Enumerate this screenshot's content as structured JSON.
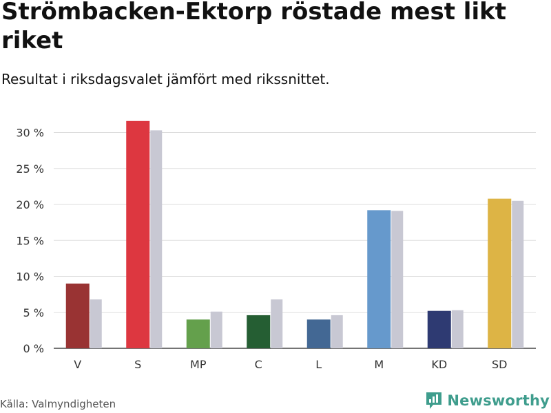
{
  "title": "Strömbacken-Ektorp röstade mest likt riket",
  "subtitle": "Resultat i riksdagsvalet jämfört med rikssnittet.",
  "source": "Källa: Valmyndigheten",
  "brand": {
    "name": "Newsworthy",
    "icon": "newsworthy-logo-icon",
    "color": "#3f9d8d"
  },
  "chart_data": {
    "type": "bar",
    "categories": [
      "V",
      "S",
      "MP",
      "C",
      "L",
      "M",
      "KD",
      "SD"
    ],
    "series": [
      {
        "values": [
          9.0,
          31.6,
          4.0,
          4.6,
          4.0,
          19.2,
          5.2,
          20.8
        ],
        "colors": [
          "#993333",
          "#dd3740",
          "#64a04c",
          "#255e33",
          "#436894",
          "#6699cc",
          "#2e3a72",
          "#ddb445"
        ]
      },
      {
        "values": [
          6.8,
          30.3,
          5.1,
          6.8,
          4.6,
          19.1,
          5.3,
          20.5
        ],
        "color": "#c8c8d3"
      }
    ],
    "ylim": [
      0,
      30
    ],
    "yticks": [
      0,
      5,
      10,
      15,
      20,
      25,
      30
    ],
    "ytick_labels": [
      "0 %",
      "5 %",
      "10 %",
      "15 %",
      "20 %",
      "25 %",
      "30 %"
    ],
    "grid": true
  }
}
